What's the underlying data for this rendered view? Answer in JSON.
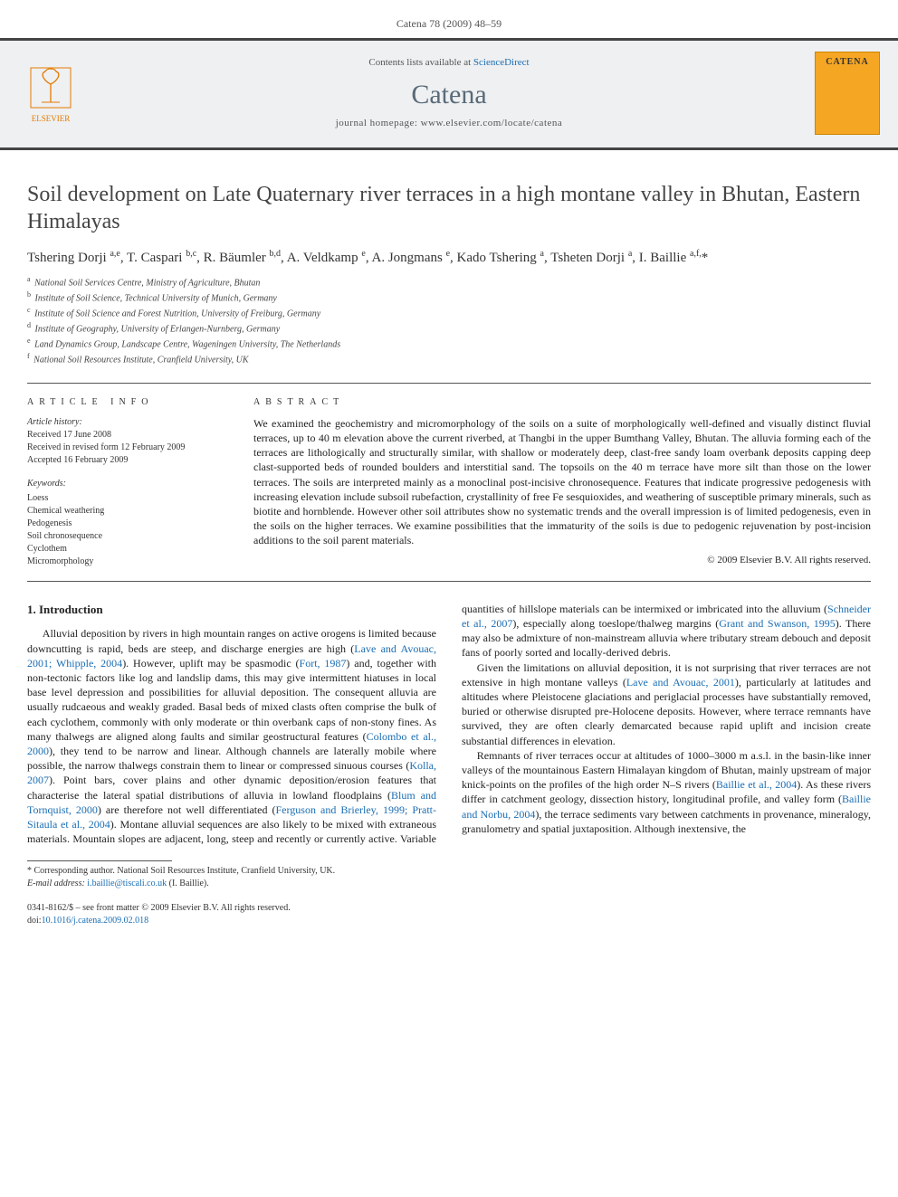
{
  "header": {
    "citation": "Catena 78 (2009) 48–59"
  },
  "masthead": {
    "publisher": "ELSEVIER",
    "availability_prefix": "Contents lists available at ",
    "availability_link": "ScienceDirect",
    "journal": "Catena",
    "homepage_label": "journal homepage: www.elsevier.com/locate/catena",
    "cover_title": "CATENA"
  },
  "article": {
    "title": "Soil development on Late Quaternary river terraces in a high montane valley in Bhutan, Eastern Himalayas",
    "authors_html": "Tshering Dorji <sup>a,e</sup>, T. Caspari <sup>b,c</sup>, R. Bäumler <sup>b,d</sup>, A. Veldkamp <sup>e</sup>, A. Jongmans <sup>e</sup>, Kado Tshering <sup>a</sup>, Tsheten Dorji <sup>a</sup>, I. Baillie <sup>a,f,</sup><span class='corr-star'>*</span>",
    "affiliations": [
      {
        "key": "a",
        "text": "National Soil Services Centre, Ministry of Agriculture, Bhutan"
      },
      {
        "key": "b",
        "text": "Institute of Soil Science, Technical University of Munich, Germany"
      },
      {
        "key": "c",
        "text": "Institute of Soil Science and Forest Nutrition, University of Freiburg, Germany"
      },
      {
        "key": "d",
        "text": "Institute of Geography, University of Erlangen-Nurnberg, Germany"
      },
      {
        "key": "e",
        "text": "Land Dynamics Group, Landscape Centre, Wageningen University, The Netherlands"
      },
      {
        "key": "f",
        "text": "National Soil Resources Institute, Cranfield University, UK"
      }
    ]
  },
  "info": {
    "head": "article info",
    "history_head": "Article history:",
    "history": [
      "Received 17 June 2008",
      "Received in revised form 12 February 2009",
      "Accepted 16 February 2009"
    ],
    "keywords_head": "Keywords:",
    "keywords": [
      "Loess",
      "Chemical weathering",
      "Pedogenesis",
      "Soil chronosequence",
      "Cyclothem",
      "Micromorphology"
    ]
  },
  "abstract": {
    "head": "abstract",
    "text": "We examined the geochemistry and micromorphology of the soils on a suite of morphologically well-defined and visually distinct fluvial terraces, up to 40 m elevation above the current riverbed, at Thangbi in the upper Bumthang Valley, Bhutan. The alluvia forming each of the terraces are lithologically and structurally similar, with shallow or moderately deep, clast-free sandy loam overbank deposits capping deep clast-supported beds of rounded boulders and interstitial sand. The topsoils on the 40 m terrace have more silt than those on the lower terraces. The soils are interpreted mainly as a monoclinal post-incisive chronosequence. Features that indicate progressive pedogenesis with increasing elevation include subsoil rubefaction, crystallinity of free Fe sesquioxides, and weathering of susceptible primary minerals, such as biotite and hornblende. However other soil attributes show no systematic trends and the overall impression is of limited pedogenesis, even in the soils on the higher terraces. We examine possibilities that the immaturity of the soils is due to pedogenic rejuvenation by post-incision additions to the soil parent materials.",
    "copyright": "© 2009 Elsevier B.V. All rights reserved."
  },
  "body": {
    "section_head": "1. Introduction",
    "p1_a": "Alluvial deposition by rivers in high mountain ranges on active orogens is limited because downcutting is rapid, beds are steep, and discharge energies are high (",
    "p1_c1": "Lave and Avouac, 2001; Whipple, 2004",
    "p1_b": "). However, uplift may be spasmodic (",
    "p1_c2": "Fort, 1987",
    "p1_c": ") and, together with non-tectonic factors like log and landslip dams, this may give intermittent hiatuses in local base level depression and possibilities for alluvial deposition. The consequent alluvia are usually rudcaeous and weakly graded. Basal beds of mixed clasts often comprise the bulk of each cyclothem, commonly with only moderate or thin overbank caps of non-stony fines. As many thalwegs are aligned along faults and similar geostructural features (",
    "p1_c3": "Colombo et al., 2000",
    "p1_d": "), they tend to be narrow and linear. Although channels are laterally mobile where possible, the narrow thalwegs constrain them to linear or compressed sinuous courses (",
    "p1_c4": "Kolla, 2007",
    "p1_e": "). Point bars, cover plains and other dynamic deposition/erosion features that characterise the lateral spatial distributions of alluvia in lowland floodplains (",
    "p1_c5": "Blum and Tornquist, 2000",
    "p1_f": ") are therefore not well differentiated (",
    "p1_c6": "Ferguson and Brierley, 1999; Pratt-Sitaula et al., 2004",
    "p1_g": "). Montane alluvial sequences are also likely to be mixed with extraneous materials. Mountain slopes are adjacent, long, steep and recently or currently active. Variable quantities of hillslope materials can be intermixed or imbricated into the alluvium (",
    "p1_c7": "Schneider et al., 2007",
    "p1_h": "), especially along toeslope/thalweg margins (",
    "p1_c8": "Grant and Swanson, 1995",
    "p1_i": "). There may also be admixture of non-mainstream alluvia where tributary stream debouch and deposit fans of poorly sorted and locally-derived debris.",
    "p2_a": "Given the limitations on alluvial deposition, it is not surprising that river terraces are not extensive in high montane valleys (",
    "p2_c1": "Lave and Avouac, 2001",
    "p2_b": "), particularly at latitudes and altitudes where Pleistocene glaciations and periglacial processes have substantially removed, buried or otherwise disrupted pre-Holocene deposits. However, where terrace remnants have survived, they are often clearly demarcated because rapid uplift and incision create substantial differences in elevation.",
    "p3_a": "Remnants of river terraces occur at altitudes of 1000–3000 m a.s.l. in the basin-like inner valleys of the mountainous Eastern Himalayan kingdom of Bhutan, mainly upstream of major knick-points on the profiles of the high order N–S rivers (",
    "p3_c1": "Baillie et al., 2004",
    "p3_b": "). As these rivers differ in catchment geology, dissection history, longitudinal profile, and valley form (",
    "p3_c2": "Baillie and Norbu, 2004",
    "p3_c": "), the terrace sediments vary between catchments in provenance, mineralogy, granulometry and spatial juxtaposition. Although inextensive, the"
  },
  "footnote": {
    "star": "* Corresponding author. National Soil Resources Institute, Cranfield University, UK.",
    "email_label": "E-mail address: ",
    "email": "i.baillie@tiscali.co.uk",
    "email_tail": " (I. Baillie)."
  },
  "bottom": {
    "issn": "0341-8162/$ – see front matter © 2009 Elsevier B.V. All rights reserved.",
    "doi_label": "doi:",
    "doi": "10.1016/j.catena.2009.02.018"
  },
  "colors": {
    "link": "#1a6db3",
    "accent": "#e67a00",
    "masthead_bg": "#eef0f2",
    "rule": "#555555"
  }
}
